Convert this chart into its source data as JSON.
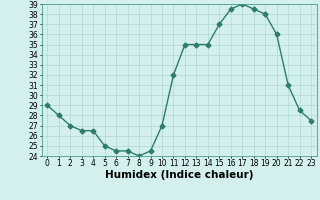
{
  "x": [
    0,
    1,
    2,
    3,
    4,
    5,
    6,
    7,
    8,
    9,
    10,
    11,
    12,
    13,
    14,
    15,
    16,
    17,
    18,
    19,
    20,
    21,
    22,
    23
  ],
  "y": [
    29.0,
    28.0,
    27.0,
    26.5,
    26.5,
    25.0,
    24.5,
    24.5,
    24.0,
    24.5,
    27.0,
    32.0,
    35.0,
    35.0,
    35.0,
    37.0,
    38.5,
    39.0,
    38.5,
    38.0,
    36.0,
    31.0,
    28.5,
    27.5
  ],
  "line_color": "#2e7d6b",
  "marker": "D",
  "marker_size": 2.5,
  "bg_color": "#d4f0ee",
  "grid_color": "#b0d8d4",
  "xlabel": "Humidex (Indice chaleur)",
  "ylim": [
    24,
    39
  ],
  "xlim": [
    -0.5,
    23.5
  ],
  "yticks": [
    24,
    25,
    26,
    27,
    28,
    29,
    30,
    31,
    32,
    33,
    34,
    35,
    36,
    37,
    38,
    39
  ],
  "xticks": [
    0,
    1,
    2,
    3,
    4,
    5,
    6,
    7,
    8,
    9,
    10,
    11,
    12,
    13,
    14,
    15,
    16,
    17,
    18,
    19,
    20,
    21,
    22,
    23
  ],
  "tick_fontsize": 5.5,
  "xlabel_fontsize": 7.5,
  "line_width": 1.0,
  "spine_color": "#4a9e8e"
}
